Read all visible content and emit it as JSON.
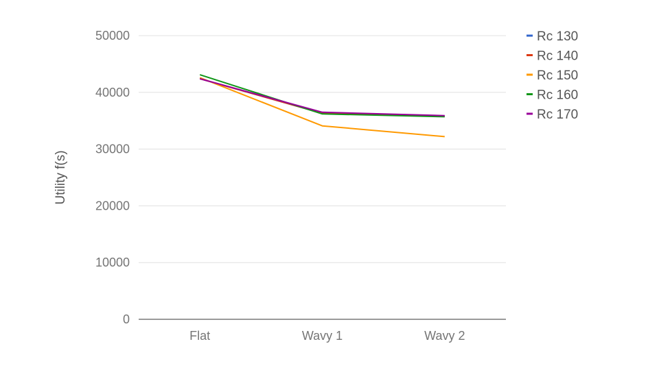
{
  "chart_data": {
    "type": "line",
    "title": "",
    "xlabel": "",
    "ylabel": "Utility f(s)",
    "categories": [
      "Flat",
      "Wavy 1",
      "Wavy 2"
    ],
    "ylim": [
      0,
      50000
    ],
    "yticks": [
      "0",
      "10000",
      "20000",
      "30000",
      "40000",
      "50000"
    ],
    "yticks_values": [
      0,
      10000,
      20000,
      30000,
      40000,
      50000
    ],
    "grid": true,
    "legend_position": "right",
    "series": [
      {
        "name": "Rc 130",
        "color": "#3366cc",
        "values": [
          42400,
          36300,
          35800
        ]
      },
      {
        "name": "Rc 140",
        "color": "#dc3912",
        "values": [
          42400,
          36300,
          35800
        ]
      },
      {
        "name": "Rc 150",
        "color": "#ff9900",
        "values": [
          42600,
          34100,
          32200
        ]
      },
      {
        "name": "Rc 160",
        "color": "#109618",
        "values": [
          43100,
          36200,
          35700
        ]
      },
      {
        "name": "Rc 170",
        "color": "#990099",
        "values": [
          42400,
          36500,
          35900
        ]
      }
    ]
  }
}
